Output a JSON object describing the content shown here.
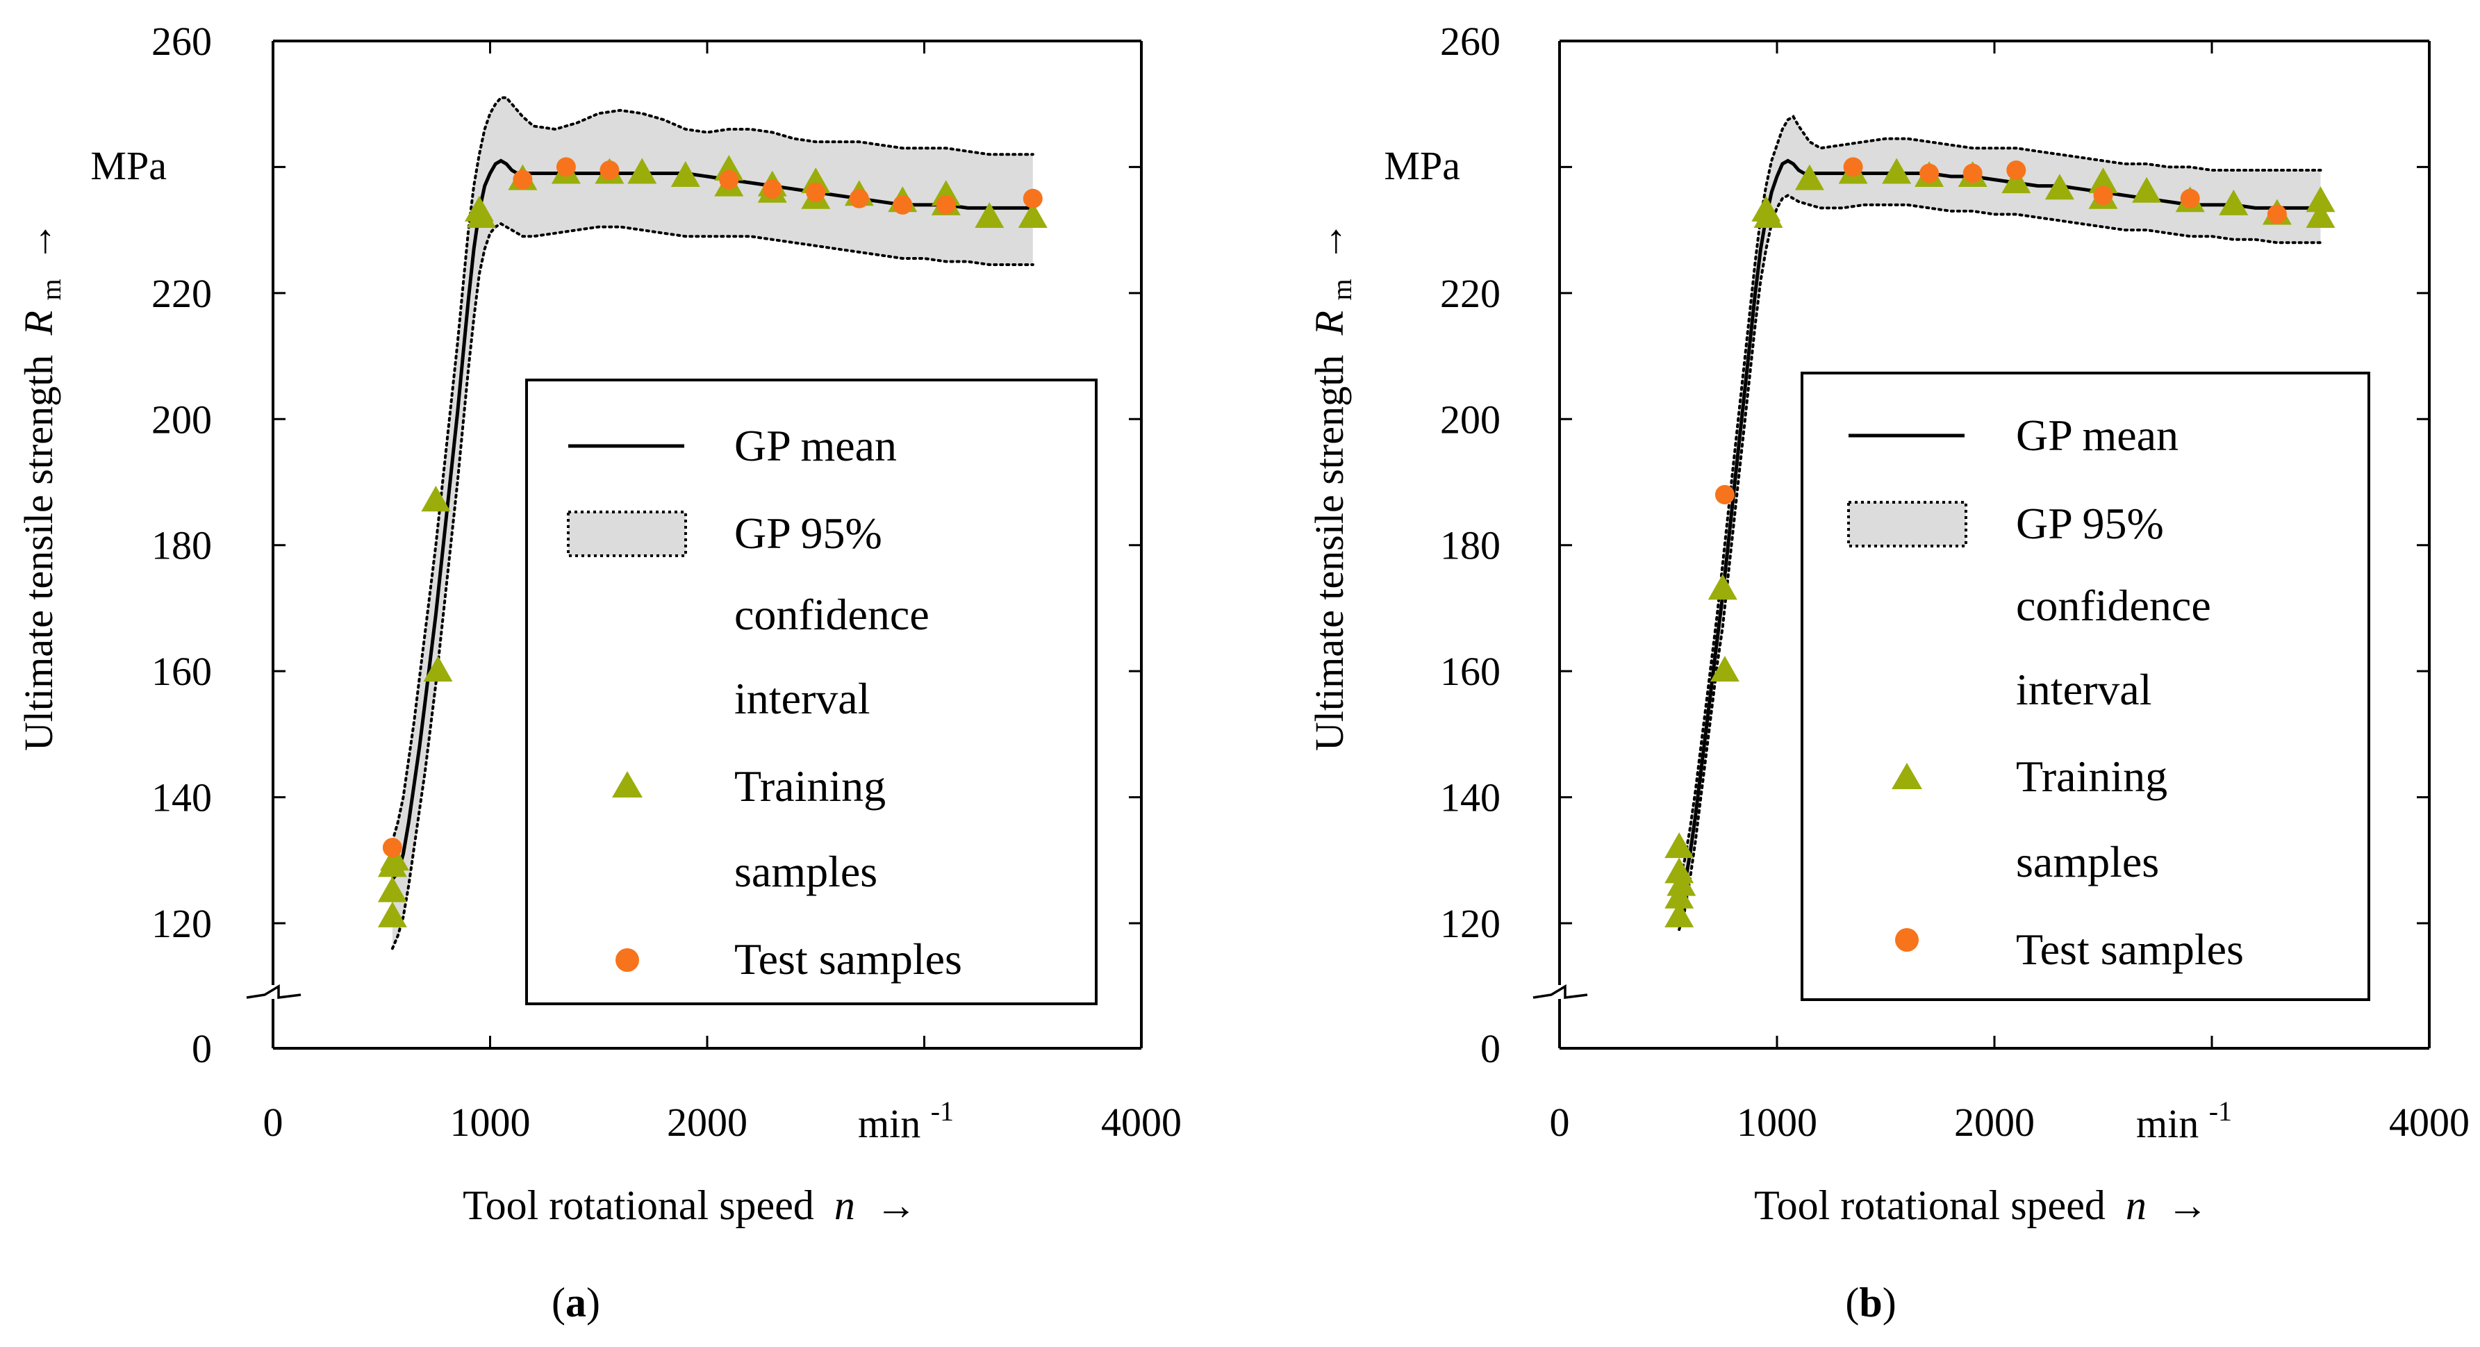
{
  "style": {
    "band_fill": "#dcdcdc",
    "train_color": "#9aad0b",
    "test_color": "#f7741c",
    "line_color": "#000000"
  },
  "chart_data": [
    {
      "id": "a",
      "type": "line",
      "panel_label": "a",
      "xlabel": "Tool rotational speed",
      "xvar": "n",
      "xunit": "min",
      "xunit_exp": "-1",
      "ylabel": "Ultimate tensile strength",
      "yvar": "R",
      "yvar_sub": "m",
      "yunit": "MPa",
      "arrow": "→",
      "xlim": [
        0,
        4000
      ],
      "xticks": [
        0,
        1000,
        2000,
        4000
      ],
      "ylim": [
        110,
        260
      ],
      "yticks": [
        120,
        140,
        160,
        180,
        200,
        220,
        260
      ],
      "y_axis_break": true,
      "y_break_label": "0",
      "legend": {
        "position": "bottom-right",
        "entries": [
          {
            "kind": "line",
            "lines": [
              "GP mean"
            ]
          },
          {
            "kind": "band",
            "lines": [
              "GP 95%",
              "confidence",
              "interval"
            ]
          },
          {
            "kind": "triangle",
            "lines": [
              "Training",
              "samples"
            ]
          },
          {
            "kind": "circle",
            "lines": [
              "Test samples"
            ]
          }
        ]
      },
      "gp_mean": {
        "x": [
          550,
          575,
          600,
          625,
          650,
          675,
          700,
          725,
          750,
          775,
          800,
          825,
          850,
          875,
          900,
          925,
          950,
          975,
          1000,
          1025,
          1050,
          1075,
          1100,
          1125,
          1150,
          1200,
          1250,
          1300,
          1400,
          1500,
          1600,
          1700,
          1800,
          1900,
          2000,
          2100,
          2200,
          2300,
          2400,
          2500,
          2600,
          2700,
          2800,
          2900,
          3000,
          3100,
          3200,
          3300,
          3400,
          3500
        ],
        "y": [
          127,
          128,
          131,
          136,
          142,
          148,
          155,
          162,
          169,
          177,
          185,
          193,
          201,
          210,
          219,
          227,
          233,
          237,
          239,
          240.5,
          241,
          240.5,
          239.5,
          239,
          239,
          239,
          239,
          239,
          239,
          239,
          239,
          239,
          239,
          239,
          238.5,
          238,
          237.5,
          237,
          236.5,
          236,
          235.5,
          235,
          234.5,
          234,
          234,
          234,
          233.5,
          233.5,
          233.5,
          233.5
        ]
      },
      "gp_upper": {
        "x": [
          550,
          575,
          600,
          625,
          650,
          675,
          700,
          725,
          750,
          775,
          800,
          825,
          850,
          875,
          900,
          925,
          950,
          975,
          1000,
          1025,
          1050,
          1075,
          1100,
          1150,
          1200,
          1300,
          1400,
          1500,
          1600,
          1700,
          1800,
          1900,
          2000,
          2100,
          2200,
          2300,
          2400,
          2500,
          2600,
          2700,
          2800,
          2900,
          3000,
          3100,
          3200,
          3300,
          3400,
          3500
        ],
        "y": [
          133,
          136,
          140,
          146,
          152,
          159,
          166,
          173,
          180,
          188,
          196,
          204,
          212,
          221,
          230,
          237,
          242,
          246,
          248.5,
          250,
          251,
          251,
          250,
          248,
          246.5,
          246,
          247,
          248.5,
          249,
          248.5,
          247.5,
          246,
          245.5,
          246,
          246,
          245.5,
          244.5,
          244,
          244,
          244,
          243.5,
          243,
          243,
          243,
          242.5,
          242,
          242,
          242
        ]
      },
      "gp_lower": {
        "x": [
          550,
          575,
          600,
          625,
          650,
          675,
          700,
          725,
          750,
          775,
          800,
          825,
          850,
          875,
          900,
          925,
          950,
          975,
          1000,
          1025,
          1050,
          1075,
          1100,
          1150,
          1200,
          1300,
          1400,
          1500,
          1600,
          1700,
          1800,
          1900,
          2000,
          2100,
          2200,
          2300,
          2400,
          2500,
          2600,
          2700,
          2800,
          2900,
          3000,
          3100,
          3200,
          3300,
          3400,
          3500
        ],
        "y": [
          116,
          118,
          121,
          126,
          132,
          138,
          144,
          151,
          158,
          166,
          174,
          182,
          190,
          199,
          208,
          216,
          223,
          227,
          229.5,
          230.5,
          231,
          230.5,
          230,
          229,
          229,
          229.5,
          230,
          230.5,
          230.5,
          230,
          229.5,
          229,
          229,
          229,
          229,
          228.5,
          228,
          227.5,
          227,
          226.5,
          226,
          225.5,
          225.5,
          225,
          225,
          224.5,
          224.5,
          224.5
        ]
      },
      "training": {
        "x": [
          550,
          550,
          550,
          560,
          750,
          760,
          950,
          960,
          1150,
          1350,
          1550,
          1700,
          1900,
          2100,
          2100,
          2300,
          2300,
          2500,
          2500,
          2700,
          2900,
          3100,
          3100,
          3300,
          3500
        ],
        "y": [
          121,
          125,
          129,
          130,
          187,
          160,
          233,
          232,
          238,
          239,
          239,
          239,
          238.5,
          237,
          239.5,
          236,
          237,
          235,
          237.5,
          235.5,
          234.5,
          234,
          235.5,
          232,
          232
        ]
      },
      "test": {
        "x": [
          550,
          1150,
          1350,
          1550,
          2100,
          2300,
          2500,
          2700,
          2900,
          3100,
          3500
        ],
        "y": [
          132,
          238,
          240,
          239.5,
          238,
          236.5,
          236,
          235,
          234,
          234,
          235
        ]
      }
    },
    {
      "id": "b",
      "type": "line",
      "panel_label": "b",
      "xlabel": "Tool rotational speed",
      "xvar": "n",
      "xunit": "min",
      "xunit_exp": "-1",
      "ylabel": "Ultimate tensile strength",
      "yvar": "R",
      "yvar_sub": "m",
      "yunit": "MPa",
      "arrow": "→",
      "xlim": [
        0,
        4000
      ],
      "xticks": [
        0,
        1000,
        2000,
        4000
      ],
      "ylim": [
        110,
        260
      ],
      "yticks": [
        120,
        140,
        160,
        180,
        200,
        220,
        260
      ],
      "y_axis_break": true,
      "y_break_label": "0",
      "legend": {
        "position": "bottom-right",
        "entries": [
          {
            "kind": "line",
            "lines": [
              "GP mean"
            ]
          },
          {
            "kind": "band",
            "lines": [
              "GP 95%",
              "confidence",
              "interval"
            ]
          },
          {
            "kind": "triangle",
            "lines": [
              "Training",
              "samples"
            ]
          },
          {
            "kind": "circle",
            "lines": [
              "Test samples"
            ]
          }
        ]
      },
      "gp_mean": {
        "x": [
          550,
          575,
          600,
          625,
          650,
          675,
          700,
          725,
          750,
          775,
          800,
          825,
          850,
          875,
          900,
          925,
          950,
          975,
          1000,
          1025,
          1050,
          1075,
          1100,
          1125,
          1150,
          1200,
          1250,
          1300,
          1400,
          1500,
          1600,
          1700,
          1800,
          1900,
          2000,
          2100,
          2200,
          2300,
          2400,
          2500,
          2600,
          2700,
          2800,
          2900,
          3000,
          3100,
          3200,
          3300,
          3400,
          3500
        ],
        "y": [
          123,
          126,
          131,
          137,
          144,
          151,
          158,
          165,
          172,
          180,
          188,
          196,
          204,
          212,
          220,
          227,
          232,
          236,
          238.5,
          240.5,
          241,
          240.5,
          239.5,
          239,
          239,
          239,
          239,
          239,
          239,
          239,
          239,
          239,
          238.5,
          238.5,
          238,
          237.5,
          237,
          237,
          236.5,
          236,
          235.5,
          235,
          234.5,
          234,
          234,
          234,
          233.5,
          233.5,
          233.5,
          233.5
        ]
      },
      "gp_upper": {
        "x": [
          550,
          575,
          600,
          625,
          650,
          675,
          700,
          725,
          750,
          775,
          800,
          825,
          850,
          875,
          900,
          925,
          950,
          975,
          1000,
          1025,
          1050,
          1075,
          1100,
          1150,
          1200,
          1300,
          1400,
          1500,
          1600,
          1700,
          1800,
          1900,
          2000,
          2100,
          2200,
          2300,
          2400,
          2500,
          2600,
          2700,
          2800,
          2900,
          3000,
          3100,
          3200,
          3300,
          3400,
          3500
        ],
        "y": [
          127,
          130,
          135,
          141,
          148,
          155,
          162,
          169,
          177,
          185,
          193,
          201,
          209,
          217,
          225,
          232,
          237,
          241,
          243.5,
          246,
          247.5,
          248,
          246.5,
          244,
          243,
          243.5,
          244,
          244.5,
          244.5,
          244,
          243.5,
          243,
          243,
          243,
          242.5,
          242,
          241.5,
          241,
          240.5,
          240.5,
          240,
          240,
          239.5,
          239.5,
          239.5,
          239.5,
          239.5,
          239.5
        ]
      },
      "gp_lower": {
        "x": [
          550,
          575,
          600,
          625,
          650,
          675,
          700,
          725,
          750,
          775,
          800,
          825,
          850,
          875,
          900,
          925,
          950,
          975,
          1000,
          1025,
          1050,
          1075,
          1100,
          1150,
          1200,
          1300,
          1400,
          1500,
          1600,
          1700,
          1800,
          1900,
          2000,
          2100,
          2200,
          2300,
          2400,
          2500,
          2600,
          2700,
          2800,
          2900,
          3000,
          3100,
          3200,
          3300,
          3400,
          3500
        ],
        "y": [
          119,
          122,
          127,
          133,
          140,
          147,
          154,
          161,
          167,
          175,
          183,
          191,
          199,
          207,
          215,
          222,
          227,
          231,
          233.5,
          235,
          235.5,
          235,
          234.5,
          234,
          233.5,
          233.5,
          234,
          234,
          234,
          233.5,
          233,
          233,
          232.5,
          232.5,
          232,
          231.5,
          231,
          230.5,
          230,
          230,
          229.5,
          229,
          229,
          228.5,
          228.5,
          228,
          228,
          228
        ]
      },
      "training": {
        "x": [
          550,
          550,
          550,
          550,
          560,
          750,
          760,
          950,
          960,
          1150,
          1350,
          1550,
          1700,
          1900,
          2100,
          2300,
          2500,
          2500,
          2700,
          2900,
          3100,
          3300,
          3500,
          3500
        ],
        "y": [
          121,
          124,
          128,
          132,
          126,
          173,
          160,
          233,
          232,
          238,
          239,
          239,
          238.5,
          238.5,
          237.5,
          236.5,
          235,
          237.5,
          236,
          234.5,
          234,
          232.5,
          232,
          234.5
        ]
      },
      "test": {
        "x": [
          760,
          1350,
          1700,
          1900,
          2100,
          2500,
          2900,
          3300
        ],
        "y": [
          188,
          240,
          239,
          239,
          239.5,
          235.5,
          235,
          232.5
        ]
      }
    }
  ]
}
